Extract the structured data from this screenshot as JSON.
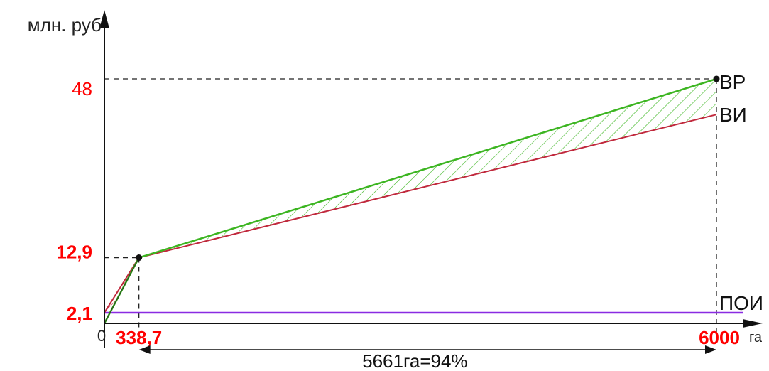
{
  "chart_data": {
    "type": "line",
    "ylabel": "млн. руб",
    "xlabel": "га",
    "x_domain": [
      0,
      6000
    ],
    "y_domain": [
      0,
      48
    ],
    "x_ticks": [
      {
        "value": 0,
        "label": "0"
      },
      {
        "value": 338.7,
        "label": "338,7"
      },
      {
        "value": 6000,
        "label": "6000"
      }
    ],
    "y_ticks": [
      {
        "value": 2.1,
        "label": "2,1"
      },
      {
        "value": 12.9,
        "label": "12,9"
      },
      {
        "value": 48,
        "label": "48"
      }
    ],
    "series": [
      {
        "name": "ВР",
        "color": "#3cb521",
        "points": [
          [
            0,
            0
          ],
          [
            338.7,
            12.9
          ],
          [
            6000,
            48
          ]
        ]
      },
      {
        "name": "ВИ",
        "color": "#c0283c",
        "points": [
          [
            0,
            2.1
          ],
          [
            338.7,
            12.9
          ],
          [
            6000,
            41
          ]
        ]
      },
      {
        "name": "ПОИ",
        "color": "#8a2be2",
        "points": [
          [
            0,
            2.1
          ],
          [
            6000,
            2.1
          ]
        ]
      }
    ],
    "key_points": [
      {
        "x": 338.7,
        "y": 12.9
      },
      {
        "x": 6000,
        "y": 48
      }
    ],
    "annotation": {
      "text": "5661га=94%",
      "x_from": 338.7,
      "x_to": 6000
    }
  }
}
